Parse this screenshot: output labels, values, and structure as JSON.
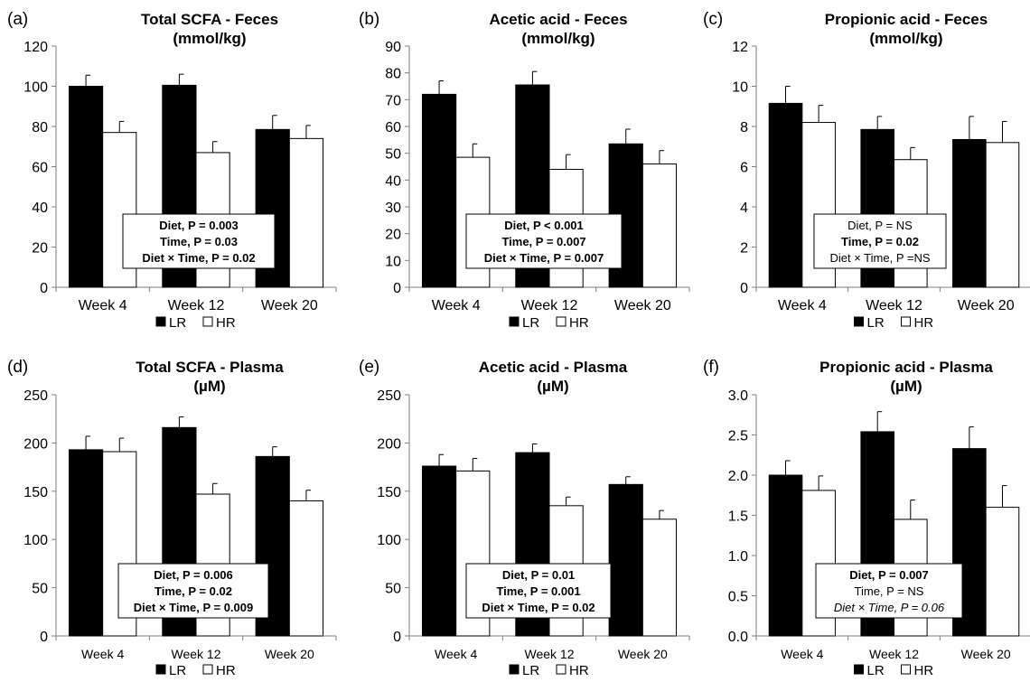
{
  "chart_data": [
    {
      "panel_label": "(a)",
      "type": "bar",
      "title": "Total SCFA - Feces",
      "subtitle": "(mmol/kg)",
      "categories": [
        "Week 4",
        "Week 12",
        "Week 20"
      ],
      "ylim": [
        0,
        120
      ],
      "yticks": [
        0,
        20,
        40,
        60,
        80,
        100,
        120
      ],
      "yticklabels": [
        "0",
        "20",
        "40",
        "60",
        "80",
        "100",
        "120"
      ],
      "series": [
        {
          "name": "LR",
          "color": "#000000",
          "values": [
            100,
            100.5,
            78.5
          ],
          "errors": [
            5.5,
            5.5,
            7
          ]
        },
        {
          "name": "HR",
          "color": "#ffffff",
          "values": [
            77,
            67,
            74
          ],
          "errors": [
            5.5,
            5.5,
            6.5
          ]
        }
      ],
      "annotation": [
        {
          "text": "Diet, P = 0.003",
          "bold": true,
          "italic": false
        },
        {
          "text": "Time, P = 0.03",
          "bold": true,
          "italic": false
        },
        {
          "text": "Diet × Time, P = 0.02",
          "bold": true,
          "italic": false
        }
      ],
      "legend": [
        "LR",
        "HR"
      ],
      "legend_position": "bottom-center",
      "grid": false
    },
    {
      "panel_label": "(b)",
      "type": "bar",
      "title": "Acetic acid - Feces",
      "subtitle": "(mmol/kg)",
      "categories": [
        "Week 4",
        "Week 12",
        "Week 20"
      ],
      "ylim": [
        0,
        90
      ],
      "yticks": [
        0,
        10,
        20,
        30,
        40,
        50,
        60,
        70,
        80,
        90
      ],
      "yticklabels": [
        "0",
        "10",
        "20",
        "30",
        "40",
        "50",
        "60",
        "70",
        "80",
        "90"
      ],
      "series": [
        {
          "name": "LR",
          "color": "#000000",
          "values": [
            72,
            75.5,
            53.5
          ],
          "errors": [
            5,
            5,
            5.5
          ]
        },
        {
          "name": "HR",
          "color": "#ffffff",
          "values": [
            48.5,
            44,
            46
          ],
          "errors": [
            5,
            5.5,
            5
          ]
        }
      ],
      "annotation": [
        {
          "text": "Diet, P < 0.001",
          "bold": true,
          "italic": false
        },
        {
          "text": "Time, P = 0.007",
          "bold": true,
          "italic": false
        },
        {
          "text": "Diet × Time, P = 0.007",
          "bold": true,
          "italic": false
        }
      ],
      "legend": [
        "LR",
        "HR"
      ],
      "legend_position": "bottom-center",
      "grid": false
    },
    {
      "panel_label": "(c)",
      "type": "bar",
      "title": "Propionic acid - Feces",
      "subtitle": "(mmol/kg)",
      "categories": [
        "Week 4",
        "Week 12",
        "Week 20"
      ],
      "ylim": [
        0,
        12
      ],
      "yticks": [
        0,
        2,
        4,
        6,
        8,
        10,
        12
      ],
      "yticklabels": [
        "0",
        "2",
        "4",
        "6",
        "8",
        "10",
        "12"
      ],
      "series": [
        {
          "name": "LR",
          "color": "#000000",
          "values": [
            9.15,
            7.85,
            7.35
          ],
          "errors": [
            0.85,
            0.65,
            1.15
          ]
        },
        {
          "name": "HR",
          "color": "#ffffff",
          "values": [
            8.2,
            6.35,
            7.2
          ],
          "errors": [
            0.85,
            0.6,
            1.05
          ]
        }
      ],
      "annotation": [
        {
          "text": "Diet, P = NS",
          "bold": false,
          "italic": false
        },
        {
          "text": "Time, P = 0.02",
          "bold": true,
          "italic": false
        },
        {
          "text": "Diet × Time, P =NS",
          "bold": false,
          "italic": false
        }
      ],
      "legend": [
        "LR",
        "HR"
      ],
      "legend_position": "bottom-center",
      "grid": false
    },
    {
      "panel_label": "(d)",
      "type": "bar",
      "title": "Total SCFA - Plasma",
      "subtitle": "(µM)",
      "categories": [
        "Week 4",
        "Week 12",
        "Week 20"
      ],
      "ylim": [
        0,
        250
      ],
      "yticks": [
        0,
        50,
        100,
        150,
        200,
        250
      ],
      "yticklabels": [
        "0",
        "50",
        "100",
        "150",
        "200",
        "250"
      ],
      "series": [
        {
          "name": "LR",
          "color": "#000000",
          "values": [
            193,
            216,
            186
          ],
          "errors": [
            14,
            11,
            10
          ]
        },
        {
          "name": "HR",
          "color": "#ffffff",
          "values": [
            191,
            147,
            140
          ],
          "errors": [
            14,
            11,
            11
          ]
        }
      ],
      "annotation": [
        {
          "text": "Diet, P = 0.006",
          "bold": true,
          "italic": false
        },
        {
          "text": "Time, P = 0.02",
          "bold": true,
          "italic": false
        },
        {
          "text": "Diet × Time, P = 0.009",
          "bold": true,
          "italic": false
        }
      ],
      "legend": [
        "LR",
        "HR"
      ],
      "legend_position": "bottom-center",
      "grid": false
    },
    {
      "panel_label": "(e)",
      "type": "bar",
      "title": "Acetic acid - Plasma",
      "subtitle": "(µM)",
      "categories": [
        "Week 4",
        "Week 12",
        "Week 20"
      ],
      "ylim": [
        0,
        250
      ],
      "yticks": [
        0,
        50,
        100,
        150,
        200,
        250
      ],
      "yticklabels": [
        "0",
        "50",
        "100",
        "150",
        "200",
        "250"
      ],
      "series": [
        {
          "name": "LR",
          "color": "#000000",
          "values": [
            176,
            190,
            157
          ],
          "errors": [
            12,
            9,
            8
          ]
        },
        {
          "name": "HR",
          "color": "#ffffff",
          "values": [
            171,
            135,
            121
          ],
          "errors": [
            13,
            9,
            9
          ]
        }
      ],
      "annotation": [
        {
          "text": "Diet, P = 0.01",
          "bold": true,
          "italic": false
        },
        {
          "text": "Time, P = 0.001",
          "bold": true,
          "italic": false
        },
        {
          "text": "Diet × Time, P = 0.02",
          "bold": true,
          "italic": false
        }
      ],
      "legend": [
        "LR",
        "HR"
      ],
      "legend_position": "bottom-center",
      "grid": false
    },
    {
      "panel_label": "(f)",
      "type": "bar",
      "title": "Propionic acid - Plasma",
      "subtitle": "(µM)",
      "categories": [
        "Week 4",
        "Week 12",
        "Week 20"
      ],
      "ylim": [
        0,
        3.0
      ],
      "yticks": [
        0,
        0.5,
        1.0,
        1.5,
        2.0,
        2.5,
        3.0
      ],
      "yticklabels": [
        "0.0",
        "0.5",
        "1.0",
        "1.5",
        "2.0",
        "2.5",
        "3.0"
      ],
      "series": [
        {
          "name": "LR",
          "color": "#000000",
          "values": [
            2.0,
            2.54,
            2.33
          ],
          "errors": [
            0.18,
            0.25,
            0.27
          ]
        },
        {
          "name": "HR",
          "color": "#ffffff",
          "values": [
            1.81,
            1.45,
            1.6
          ],
          "errors": [
            0.18,
            0.24,
            0.27
          ]
        }
      ],
      "annotation": [
        {
          "text": "Diet, P = 0.007",
          "bold": true,
          "italic": false
        },
        {
          "text": "Time, P = NS",
          "bold": false,
          "italic": false
        },
        {
          "text": "Diet × Time, P = 0.06",
          "bold": false,
          "italic": true
        }
      ],
      "legend": [
        "LR",
        "HR"
      ],
      "legend_position": "bottom-center",
      "grid": false
    }
  ]
}
